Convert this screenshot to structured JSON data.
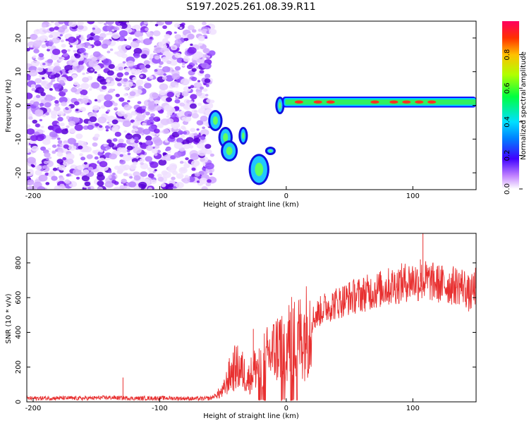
{
  "title": "S197.2025.261.08.39.R11",
  "chart_data": [
    {
      "type": "heatmap",
      "title": "S197.2025.261.08.39.R11",
      "xlabel": "Height of straight line (km)",
      "ylabel": "Frequency (Hz)",
      "xlim": [
        -205,
        150
      ],
      "ylim": [
        -25,
        25
      ],
      "xticks": [
        -200,
        -100,
        0,
        100
      ],
      "yticks": [
        -20,
        -10,
        0,
        10,
        20
      ],
      "noise_region_x": [
        -205,
        -58
      ],
      "signal_segments": [
        {
          "x": [
            -60,
            -52
          ],
          "y": [
            -7,
            -2
          ]
        },
        {
          "x": [
            -52,
            -44
          ],
          "y": [
            -12,
            -7
          ]
        },
        {
          "x": [
            -50,
            -40
          ],
          "y": [
            -16,
            -11
          ]
        },
        {
          "x": [
            -36,
            -32
          ],
          "y": [
            -11,
            -7
          ]
        },
        {
          "x": [
            -28,
            -15
          ],
          "y": [
            -23,
            -15
          ]
        },
        {
          "x": [
            -15,
            -10
          ],
          "y": [
            -14,
            -13
          ]
        },
        {
          "x": [
            -7,
            -3
          ],
          "y": [
            -2,
            2
          ]
        },
        {
          "x": [
            -3,
            150
          ],
          "y": [
            0,
            2
          ]
        }
      ],
      "ridge_peaks_x": [
        10,
        25,
        35,
        70,
        85,
        95,
        105,
        115
      ],
      "colorbar": {
        "label": "Normalized spectral amplitude",
        "range": [
          0,
          1
        ],
        "ticks": [
          "0.0",
          "0.2",
          "0.4",
          "0.6",
          "0.8"
        ]
      }
    },
    {
      "type": "line",
      "xlabel": "Height of straight line (km)",
      "ylabel": "SNR (10 * v/v)",
      "xlim": [
        -205,
        150
      ],
      "ylim": [
        0,
        970
      ],
      "xticks": [
        -200,
        -100,
        0,
        100
      ],
      "yticks": [
        0,
        200,
        400,
        600,
        800
      ],
      "series": [
        {
          "name": "SNR",
          "color": "#e83030",
          "x": [
            -205,
            -180,
            -160,
            -140,
            -120,
            -100,
            -80,
            -70,
            -60,
            -50,
            -45,
            -40,
            -35,
            -30,
            -25,
            -20,
            -15,
            -10,
            -5,
            0,
            5,
            10,
            15,
            20,
            25,
            30,
            40,
            50,
            60,
            70,
            80,
            90,
            100,
            105,
            110,
            120,
            130,
            140,
            145,
            150
          ],
          "y": [
            20,
            22,
            20,
            25,
            20,
            22,
            20,
            18,
            20,
            60,
            150,
            200,
            180,
            130,
            190,
            220,
            260,
            290,
            330,
            350,
            360,
            370,
            400,
            470,
            510,
            540,
            570,
            600,
            620,
            640,
            660,
            680,
            700,
            690,
            700,
            680,
            670,
            670,
            610,
            670
          ]
        }
      ],
      "spikes": [
        {
          "x": -129,
          "y": 140
        },
        {
          "x": -26,
          "y": 420
        },
        {
          "x": 108,
          "y": 970
        },
        {
          "x": 106,
          "y": 820
        }
      ]
    }
  ]
}
